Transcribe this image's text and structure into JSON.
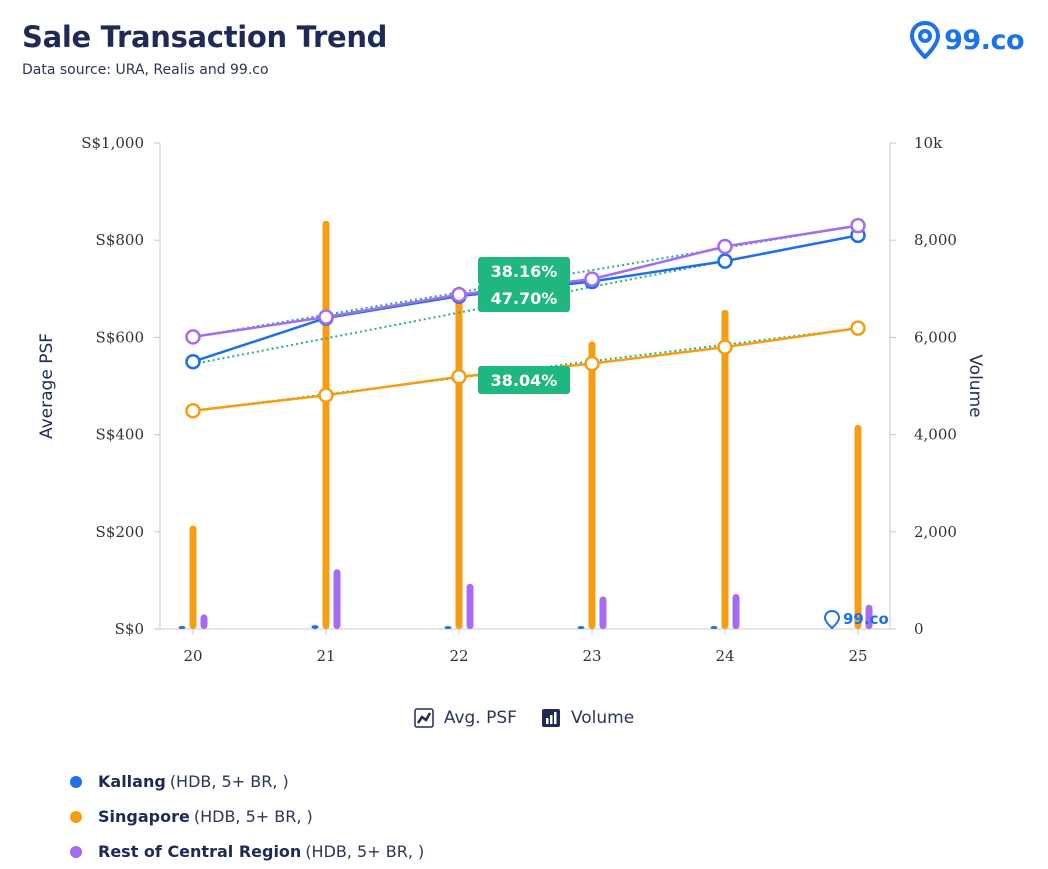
{
  "header": {
    "title": "Sale Transaction Trend",
    "subtitle": "Data source: URA, Realis and 99.co"
  },
  "logo": {
    "text": "99.co",
    "watermark_text": "99.co",
    "icon": "location-pin-icon",
    "color": "#1a73e8"
  },
  "legend_modes": [
    {
      "label": "Avg. PSF",
      "icon": "line-chart-icon"
    },
    {
      "label": "Volume",
      "icon": "bar-chart-icon"
    }
  ],
  "legend_series": [
    {
      "name": "Kallang",
      "detail": "(HDB, 5+ BR, )",
      "color": "#1f6fe5"
    },
    {
      "name": "Singapore",
      "detail": "(HDB, 5+ BR, )",
      "color": "#f59e13"
    },
    {
      "name": "Rest of Central Region",
      "detail": "(HDB, 5+ BR, )",
      "color": "#a66bf2"
    }
  ],
  "chart_data": {
    "type": "bar+line",
    "title": "Sale Transaction Trend",
    "categories": [
      "20",
      "21",
      "22",
      "23",
      "24",
      "25"
    ],
    "y_left": {
      "label": "Average PSF",
      "range": [
        0,
        1000
      ],
      "ticks": [
        "S$0",
        "S$200",
        "S$400",
        "S$600",
        "S$800",
        "S$1,000"
      ]
    },
    "y_right": {
      "label": "Volume",
      "range": [
        0,
        10000
      ],
      "ticks": [
        "0",
        "2,000",
        "4,000",
        "6,000",
        "8,000",
        "10k"
      ]
    },
    "grid": false,
    "series": [
      {
        "name": "Kallang",
        "color": "#1f6fe5",
        "psf": [
          550,
          640,
          685,
          715,
          757,
          810
        ],
        "volume": [
          20,
          80,
          60,
          40,
          30,
          0
        ],
        "trend_psf": [
          545,
          810
        ]
      },
      {
        "name": "Singapore",
        "color": "#f59e13",
        "psf": [
          449,
          481,
          519,
          546,
          580,
          619
        ],
        "volume": [
          2130,
          8400,
          7050,
          5920,
          6570,
          4200
        ],
        "trend_psf": [
          449,
          619
        ]
      },
      {
        "name": "Rest of Central Region",
        "color": "#a66bf2",
        "psf": [
          601,
          642,
          688,
          720,
          787,
          830
        ],
        "volume": [
          300,
          1230,
          930,
          670,
          720,
          500
        ],
        "trend_psf": [
          601,
          830
        ]
      }
    ],
    "annotations": [
      {
        "text": "38.16%",
        "color": "#1fb77f"
      },
      {
        "text": "47.70%",
        "color": "#1fb77f"
      },
      {
        "text": "38.04%",
        "color": "#1fb77f"
      }
    ]
  }
}
